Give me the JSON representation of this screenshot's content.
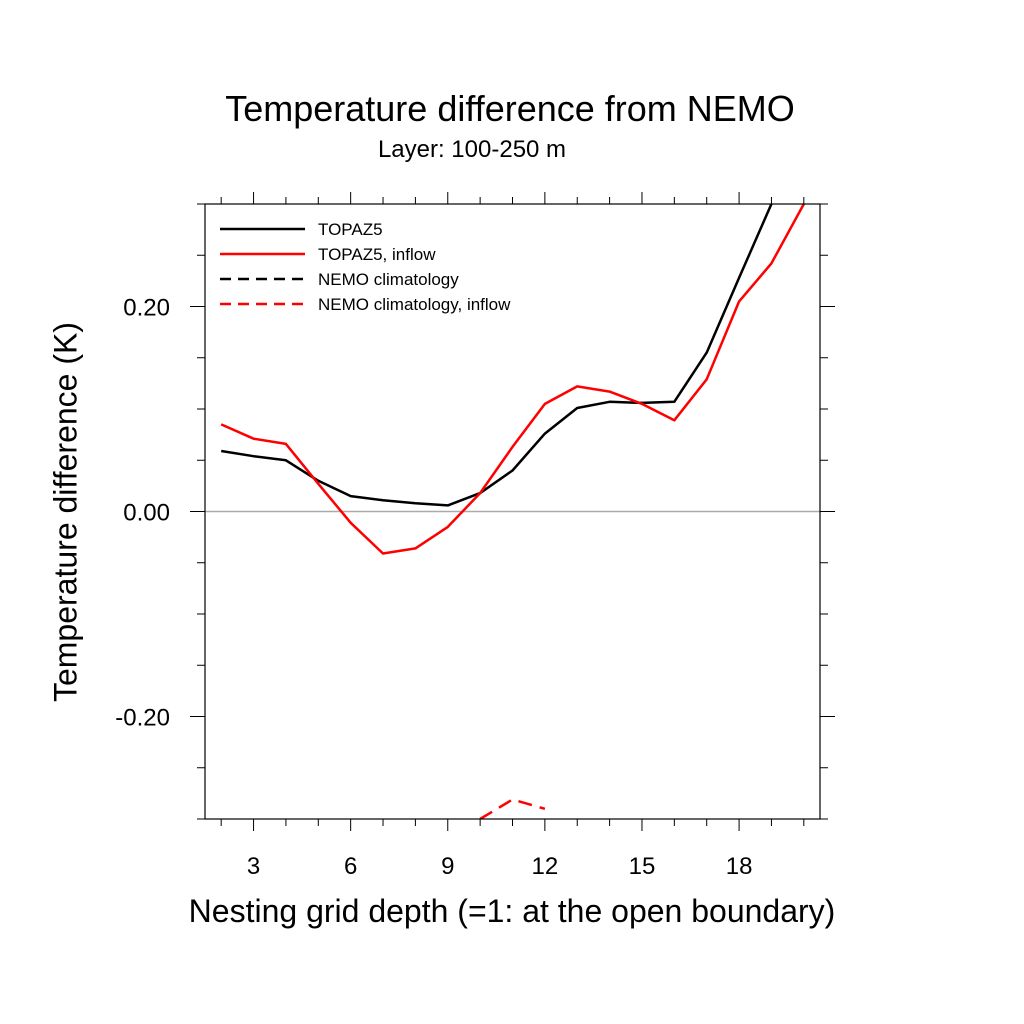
{
  "chart_data": {
    "type": "line",
    "title": "Temperature difference from NEMO",
    "subtitle": "Layer: 100-250 m",
    "xlabel": "Nesting grid depth (=1: at the open boundary)",
    "ylabel": "Temperature difference (K)",
    "xlim": [
      1.5,
      20.5
    ],
    "ylim": [
      -0.3,
      0.3
    ],
    "x_ticks": [
      3,
      6,
      9,
      12,
      15,
      18
    ],
    "y_ticks": [
      -0.2,
      0.0,
      0.2
    ],
    "y_tick_labels": [
      "-0.20",
      "0.00",
      "0.20"
    ],
    "zero_line": true,
    "legend_position": "top-left",
    "series": [
      {
        "name": "TOPAZ5",
        "color": "#000000",
        "style": "solid",
        "x": [
          2,
          3,
          4,
          5,
          6,
          7,
          8,
          9,
          10,
          11,
          12,
          13,
          14,
          15,
          16,
          17,
          18,
          19
        ],
        "y": [
          0.059,
          0.054,
          0.05,
          0.03,
          0.015,
          0.011,
          0.008,
          0.006,
          0.018,
          0.04,
          0.076,
          0.101,
          0.107,
          0.106,
          0.107,
          0.155,
          0.228,
          0.3
        ]
      },
      {
        "name": "TOPAZ5, inflow",
        "color": "#ff0000",
        "style": "solid",
        "x": [
          2,
          3,
          4,
          5,
          6,
          7,
          8,
          9,
          10,
          11,
          12,
          13,
          14,
          15,
          16,
          17,
          18,
          19,
          20
        ],
        "y": [
          0.085,
          0.071,
          0.066,
          0.027,
          -0.011,
          -0.041,
          -0.036,
          -0.015,
          0.018,
          0.063,
          0.105,
          0.122,
          0.117,
          0.105,
          0.089,
          0.129,
          0.205,
          0.242,
          0.3
        ]
      },
      {
        "name": "NEMO climatology",
        "color": "#000000",
        "style": "dashed",
        "x": [],
        "y": []
      },
      {
        "name": "NEMO climatology, inflow",
        "color": "#ff0000",
        "style": "dashed",
        "x": [
          10,
          11,
          12
        ],
        "y": [
          -0.3,
          -0.281,
          -0.29
        ]
      }
    ]
  }
}
